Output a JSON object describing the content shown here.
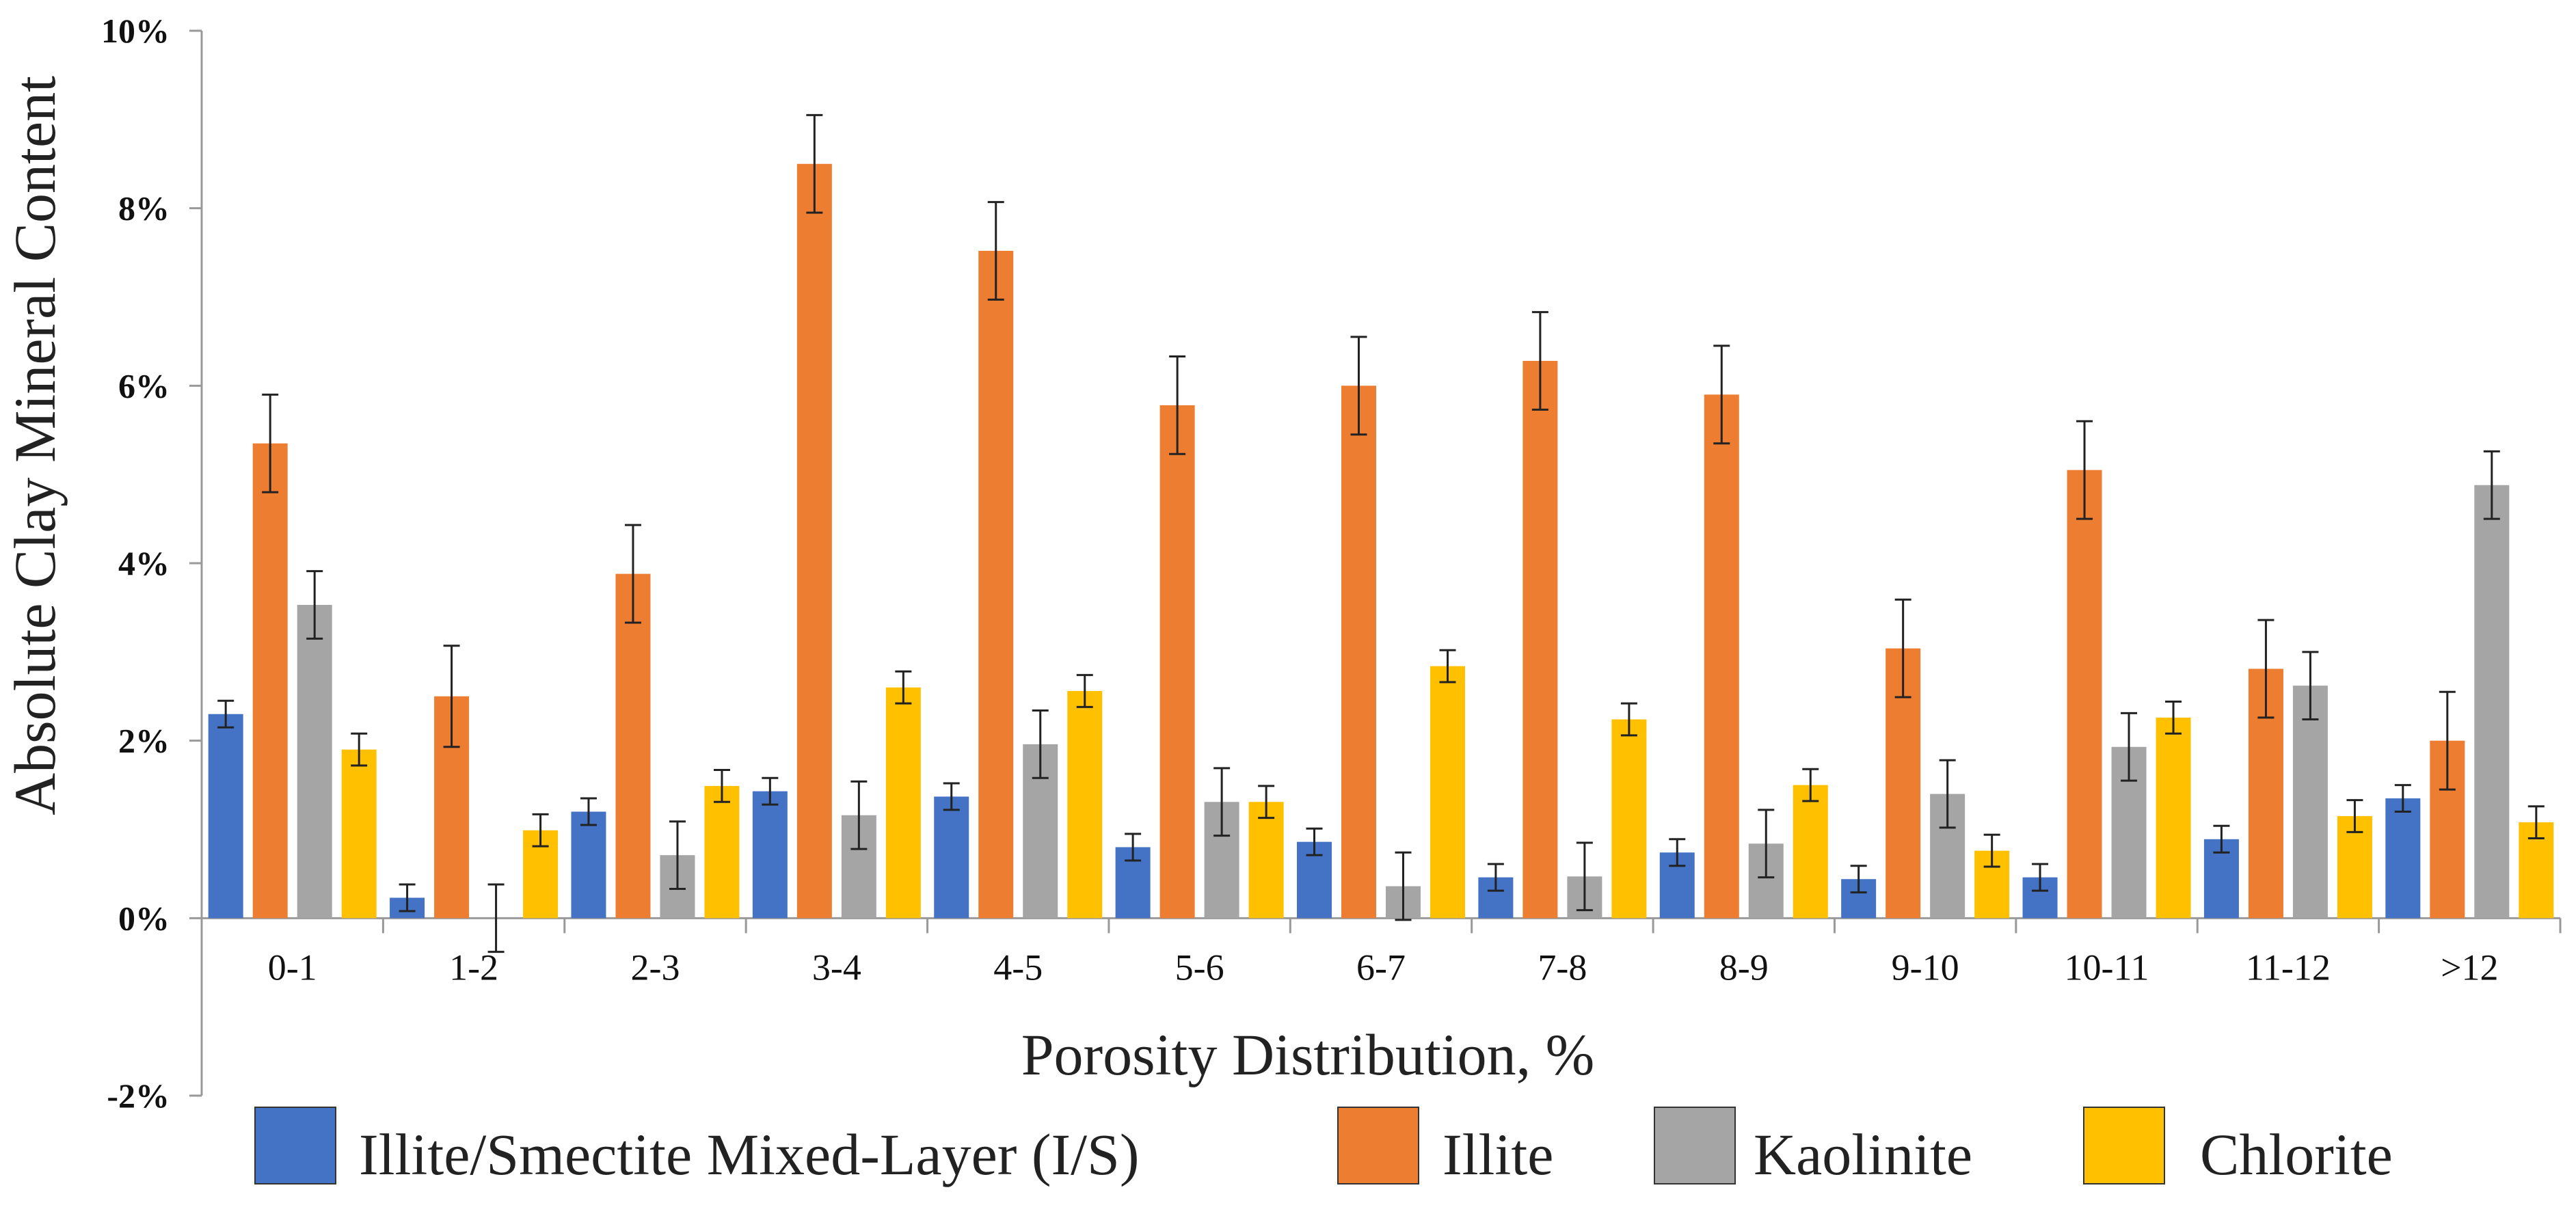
{
  "chart_data": {
    "type": "bar",
    "title": "",
    "xlabel": "Porosity Distribution, %",
    "ylabel": "Absolute Clay Mineral Content",
    "ylim": [
      -2,
      10
    ],
    "yticks": [
      -2,
      0,
      2,
      4,
      6,
      8,
      10
    ],
    "ytick_labels": [
      "-2%",
      "0%",
      "2%",
      "4%",
      "6%",
      "8%",
      "10%"
    ],
    "categories": [
      "0-1",
      "1-2",
      "2-3",
      "3-4",
      "4-5",
      "5-6",
      "6-7",
      "7-8",
      "8-9",
      "9-10",
      "10-11",
      "11-12",
      ">12"
    ],
    "legend_position": "bottom",
    "series": [
      {
        "name": "Illite/Smectite Mixed-Layer (I/S)",
        "color": "#4472C4",
        "values": [
          2.3,
          0.23,
          1.2,
          1.43,
          1.37,
          0.8,
          0.86,
          0.46,
          0.74,
          0.44,
          0.46,
          0.89,
          1.35
        ],
        "errors": [
          0.15,
          0.15,
          0.15,
          0.15,
          0.15,
          0.15,
          0.15,
          0.15,
          0.15,
          0.15,
          0.15,
          0.15,
          0.15
        ]
      },
      {
        "name": "Illite",
        "color": "#ED7D31",
        "values": [
          5.35,
          2.5,
          3.88,
          8.5,
          7.52,
          5.78,
          6.0,
          6.28,
          5.9,
          3.04,
          5.05,
          2.81,
          2.0
        ],
        "errors": [
          0.55,
          0.57,
          0.55,
          0.55,
          0.55,
          0.55,
          0.55,
          0.55,
          0.55,
          0.55,
          0.55,
          0.55,
          0.55
        ]
      },
      {
        "name": "Kaolinite",
        "color": "#A5A5A5",
        "values": [
          3.53,
          0.0,
          0.71,
          1.16,
          1.96,
          1.31,
          0.36,
          0.47,
          0.84,
          1.4,
          1.93,
          2.62,
          4.88
        ],
        "errors": [
          0.38,
          0.38,
          0.38,
          0.38,
          0.38,
          0.38,
          0.38,
          0.38,
          0.38,
          0.38,
          0.38,
          0.38,
          0.38
        ]
      },
      {
        "name": "Chlorite",
        "color": "#FFC000",
        "values": [
          1.9,
          0.99,
          1.49,
          2.6,
          2.56,
          1.31,
          2.84,
          2.24,
          1.5,
          0.76,
          2.26,
          1.15,
          1.08
        ],
        "errors": [
          0.18,
          0.18,
          0.18,
          0.18,
          0.18,
          0.18,
          0.18,
          0.18,
          0.18,
          0.18,
          0.18,
          0.18,
          0.18
        ]
      }
    ]
  }
}
